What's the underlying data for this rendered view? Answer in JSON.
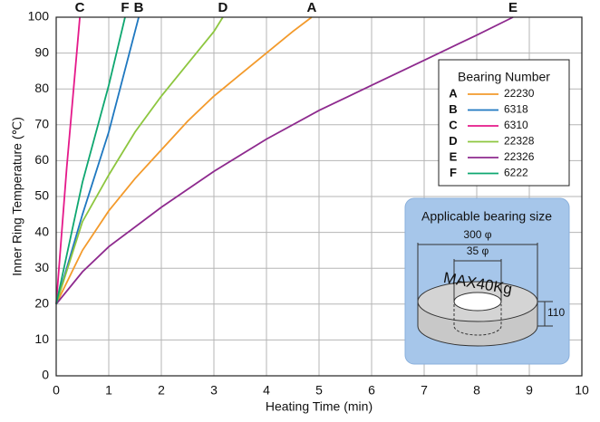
{
  "chart_data": {
    "type": "line",
    "x_label": "Heating Time (min)",
    "y_label": "Inner Ring Temperature (℃)",
    "xlim": [
      0,
      10
    ],
    "xticks": [
      0,
      1,
      2,
      3,
      4,
      5,
      6,
      7,
      8,
      9,
      10
    ],
    "ylim": [
      0,
      100
    ],
    "yticks": [
      0,
      10,
      20,
      30,
      40,
      50,
      60,
      70,
      80,
      90,
      100
    ],
    "grid": true,
    "legend_title": "Bearing Number",
    "legend_position": "upper right",
    "series": [
      {
        "label": "A",
        "name": "22230",
        "color": "#f39a2b",
        "x": [
          0,
          0.5,
          1,
          1.5,
          2,
          2.5,
          3,
          3.5,
          4,
          4.5,
          4.86
        ],
        "values": [
          20,
          35,
          46,
          55,
          63,
          71,
          78,
          84,
          90,
          96,
          100
        ]
      },
      {
        "label": "B",
        "name": "6318",
        "color": "#1f78c0",
        "x": [
          0,
          0.5,
          1,
          1.57
        ],
        "values": [
          20,
          45,
          68,
          100
        ]
      },
      {
        "label": "C",
        "name": "6310",
        "color": "#e5198a",
        "x": [
          0,
          0.2,
          0.45
        ],
        "values": [
          20,
          58,
          100
        ]
      },
      {
        "label": "D",
        "name": "22328",
        "color": "#8dc63f",
        "x": [
          0,
          0.5,
          1,
          1.5,
          2,
          2.5,
          3,
          3.17
        ],
        "values": [
          20,
          43,
          56,
          68,
          78,
          87,
          96,
          100
        ]
      },
      {
        "label": "E",
        "name": "22326",
        "color": "#8e2a8e",
        "x": [
          0,
          0.5,
          1,
          2,
          3,
          4,
          5,
          6,
          7,
          8,
          8.69
        ],
        "values": [
          20,
          29,
          36,
          47,
          57,
          66,
          74,
          81,
          88,
          95,
          100
        ]
      },
      {
        "label": "F",
        "name": "6222",
        "color": "#0ea770",
        "x": [
          0,
          0.5,
          1,
          1.31
        ],
        "values": [
          20,
          54,
          81,
          100
        ]
      }
    ],
    "inset": {
      "title": "Applicable bearing size",
      "outer_diameter": "300 φ",
      "inner_diameter": "35 φ",
      "max_weight": "MAX40Kg",
      "height": "110"
    }
  }
}
